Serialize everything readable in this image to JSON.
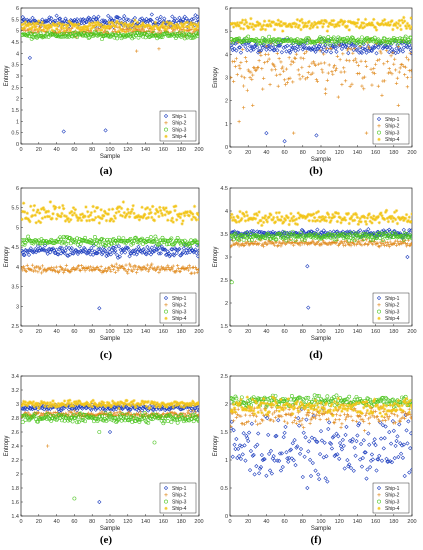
{
  "figure": {
    "series_names": [
      "Ship-1",
      "Ship-2",
      "Ship-3",
      "Ship-4"
    ],
    "series_colors": [
      "#1f3fbf",
      "#e08a1e",
      "#4bc41e",
      "#f2c51a"
    ],
    "series_markers": [
      "diamond",
      "plus",
      "circle",
      "star"
    ],
    "xlabel": "Sample",
    "ylabel": "Entropy"
  },
  "chart_data": [
    {
      "type": "scatter",
      "panel_label": "(a)",
      "xlim": [
        0,
        200
      ],
      "ylim": [
        0,
        6
      ],
      "xticks": [
        0,
        20,
        40,
        60,
        80,
        100,
        120,
        140,
        160,
        180,
        200
      ],
      "yticks": [
        0,
        0.5,
        1,
        1.5,
        2,
        2.5,
        3,
        3.5,
        4,
        4.5,
        5,
        5.5,
        6
      ],
      "ytick_labels": [
        "0",
        "0.5",
        "1",
        "1.5",
        "2",
        "2.5",
        "3",
        "3.5",
        "4",
        "4.5",
        "5",
        "5.5",
        "6"
      ],
      "legend_position": "bottom-right",
      "series": [
        {
          "name": "Ship-1",
          "center": 5.4,
          "spread": 0.35,
          "outliers": [
            [
              10,
              3.8
            ],
            [
              48,
              0.55
            ],
            [
              95,
              0.6
            ]
          ]
        },
        {
          "name": "Ship-2",
          "center": 5.0,
          "spread": 0.3,
          "outliers": [
            [
              130,
              4.1
            ],
            [
              155,
              4.2
            ]
          ]
        },
        {
          "name": "Ship-3",
          "center": 4.8,
          "spread": 0.2,
          "outliers": []
        },
        {
          "name": "Ship-4",
          "center": 5.2,
          "spread": 0.3,
          "outliers": []
        }
      ]
    },
    {
      "type": "scatter",
      "panel_label": "(b)",
      "xlim": [
        0,
        200
      ],
      "ylim": [
        0,
        6
      ],
      "xticks": [
        0,
        20,
        40,
        60,
        80,
        100,
        120,
        140,
        160,
        180,
        200
      ],
      "yticks": [
        0,
        1,
        2,
        3,
        4,
        5,
        6
      ],
      "ytick_labels": [
        "0",
        "1",
        "2",
        "3",
        "4",
        "5",
        "6"
      ],
      "legend_position": "bottom-right",
      "series": [
        {
          "name": "Ship-1",
          "center": 4.3,
          "spread": 0.45,
          "outliers": [
            [
              40,
              0.6
            ],
            [
              60,
              0.25
            ],
            [
              95,
              0.5
            ]
          ]
        },
        {
          "name": "Ship-2",
          "center": 3.5,
          "spread": 1.6,
          "outliers": [
            [
              10,
              1.1
            ],
            [
              15,
              1.7
            ],
            [
              25,
              1.8
            ],
            [
              70,
              0.6
            ],
            [
              105,
              2.3
            ],
            [
              150,
              0.6
            ],
            [
              185,
              1.8
            ],
            [
              195,
              2.6
            ]
          ]
        },
        {
          "name": "Ship-3",
          "center": 4.6,
          "spread": 0.2,
          "outliers": []
        },
        {
          "name": "Ship-4",
          "center": 5.3,
          "spread": 0.35,
          "outliers": []
        }
      ]
    },
    {
      "type": "scatter",
      "panel_label": "(c)",
      "xlim": [
        0,
        200
      ],
      "ylim": [
        2.5,
        6
      ],
      "xticks": [
        0,
        20,
        40,
        60,
        80,
        100,
        120,
        140,
        160,
        180,
        200
      ],
      "yticks": [
        2.5,
        3,
        3.5,
        4,
        4.5,
        5,
        5.5,
        6
      ],
      "ytick_labels": [
        "2.5",
        "3",
        "3.5",
        "4",
        "4.5",
        "5",
        "5.5",
        "6"
      ],
      "legend_position": "bottom-right",
      "series": [
        {
          "name": "Ship-1",
          "center": 4.4,
          "spread": 0.2,
          "outliers": [
            [
              88,
              2.95
            ]
          ]
        },
        {
          "name": "Ship-2",
          "center": 3.95,
          "spread": 0.15,
          "outliers": []
        },
        {
          "name": "Ship-3",
          "center": 4.65,
          "spread": 0.15,
          "outliers": []
        },
        {
          "name": "Ship-4",
          "center": 5.35,
          "spread": 0.35,
          "outliers": []
        }
      ]
    },
    {
      "type": "scatter",
      "panel_label": "(d)",
      "xlim": [
        0,
        200
      ],
      "ylim": [
        1.5,
        4.5
      ],
      "xticks": [
        0,
        20,
        40,
        60,
        80,
        100,
        120,
        140,
        160,
        180,
        200
      ],
      "yticks": [
        1.5,
        2,
        2.5,
        3,
        3.5,
        4,
        4.5
      ],
      "ytick_labels": [
        "1.5",
        "2",
        "2.5",
        "3",
        "3.5",
        "4",
        "4.5"
      ],
      "legend_position": "bottom-right",
      "series": [
        {
          "name": "Ship-1",
          "center": 3.5,
          "spread": 0.12,
          "outliers": [
            [
              85,
              2.8
            ],
            [
              86,
              1.9
            ],
            [
              195,
              3.0
            ]
          ]
        },
        {
          "name": "Ship-2",
          "center": 3.3,
          "spread": 0.1,
          "outliers": []
        },
        {
          "name": "Ship-3",
          "center": 3.45,
          "spread": 0.12,
          "outliers": [
            [
              2,
              2.45
            ]
          ]
        },
        {
          "name": "Ship-4",
          "center": 3.85,
          "spread": 0.2,
          "outliers": []
        }
      ]
    },
    {
      "type": "scatter",
      "panel_label": "(e)",
      "xlim": [
        0,
        200
      ],
      "ylim": [
        1.4,
        3.4
      ],
      "xticks": [
        0,
        20,
        40,
        60,
        80,
        100,
        120,
        140,
        160,
        180,
        200
      ],
      "yticks": [
        1.4,
        1.6,
        1.8,
        2,
        2.2,
        2.4,
        2.6,
        2.8,
        3,
        3.2,
        3.4
      ],
      "ytick_labels": [
        "1.4",
        "1.6",
        "1.8",
        "2",
        "2.2",
        "2.4",
        "2.6",
        "2.8",
        "3",
        "3.2",
        "3.4"
      ],
      "legend_position": "bottom-right",
      "series": [
        {
          "name": "Ship-1",
          "center": 2.95,
          "spread": 0.07,
          "outliers": [
            [
              88,
              1.6
            ],
            [
              100,
              2.6
            ]
          ]
        },
        {
          "name": "Ship-2",
          "center": 2.85,
          "spread": 0.06,
          "outliers": [
            [
              30,
              2.4
            ]
          ]
        },
        {
          "name": "Ship-3",
          "center": 2.8,
          "spread": 0.1,
          "outliers": [
            [
              60,
              1.65
            ],
            [
              88,
              2.6
            ],
            [
              150,
              2.45
            ]
          ]
        },
        {
          "name": "Ship-4",
          "center": 3.0,
          "spread": 0.08,
          "outliers": []
        }
      ]
    },
    {
      "type": "scatter",
      "panel_label": "(f)",
      "xlim": [
        0,
        200
      ],
      "ylim": [
        0,
        2.5
      ],
      "xticks": [
        0,
        20,
        40,
        60,
        80,
        100,
        120,
        140,
        160,
        180,
        200
      ],
      "yticks": [
        0,
        0.5,
        1,
        1.5,
        2,
        2.5
      ],
      "ytick_labels": [
        "0",
        "0.5",
        "1",
        "1.5",
        "2",
        "2.5"
      ],
      "legend_position": "bottom-right",
      "series": [
        {
          "name": "Ship-1",
          "center": 1.2,
          "spread": 0.8,
          "outliers": []
        },
        {
          "name": "Ship-2",
          "center": 1.8,
          "spread": 0.3,
          "outliers": []
        },
        {
          "name": "Ship-3",
          "center": 2.05,
          "spread": 0.15,
          "outliers": []
        },
        {
          "name": "Ship-4",
          "center": 1.95,
          "spread": 0.2,
          "outliers": []
        }
      ]
    }
  ]
}
